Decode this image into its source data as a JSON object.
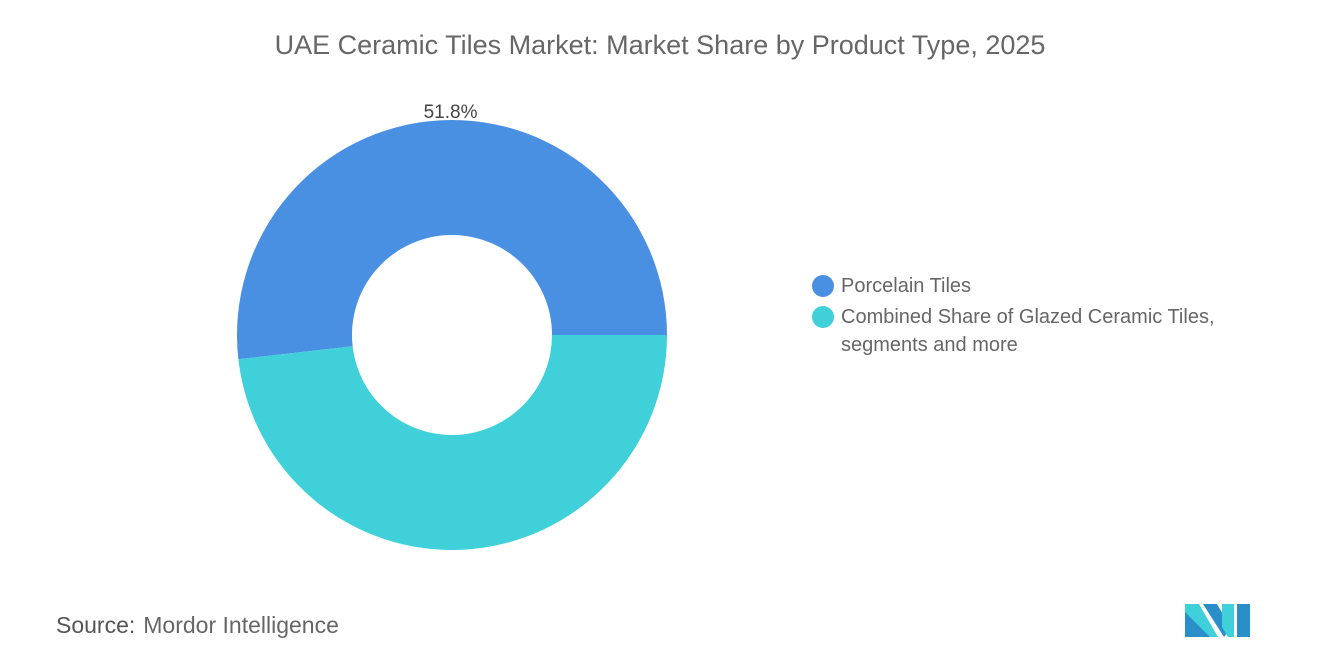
{
  "chart_data": {
    "type": "pie",
    "variant": "donut",
    "title": "UAE Ceramic Tiles Market: Market Share by Product Type, 2025",
    "slices": [
      {
        "name": "Porcelain Tiles",
        "value": 51.8,
        "label": "51.8%",
        "color": "#4a90e2"
      },
      {
        "name": "Combined Share of Glazed Ceramic Tiles, segments and more",
        "value": 48.2,
        "label": "",
        "color": "#3fd0da"
      }
    ],
    "legend_position": "right"
  },
  "source": {
    "label": "Source:",
    "value": "Mordor Intelligence"
  },
  "logo": {
    "colors": [
      "#2a8fc9",
      "#3fd0da"
    ]
  }
}
